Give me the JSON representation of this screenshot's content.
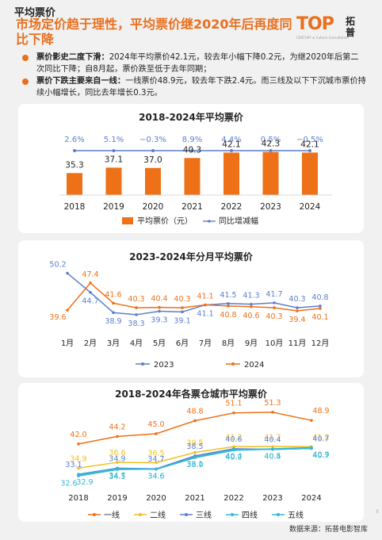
{
  "header": {
    "label": "平均票价",
    "headline": "市场定价趋于理性，平均票价继2020年后再度同比下降"
  },
  "logo": {
    "mark": "TOP",
    "brand": "拓普",
    "tagline": "CENTURY ★ Culture Consultation"
  },
  "bullets": [
    {
      "lead": "票价影史二度下滑：",
      "text": "2024年平均票价42.1元，较去年小幅下降0.2元，为继2020年后第二次同比下降；自8月起，票价跌至低于去年同期；"
    },
    {
      "lead": "票价下跌主要来自一线：",
      "text": "一线票价48.9元，较去年下跌2.4元。而三线及以下下沉城市票价持续小幅增长，同比去年增长0.3元。"
    }
  ],
  "colors": {
    "orange": "#ee7117",
    "blue": "#5b7fcf",
    "yellow": "#f0c022",
    "cyan": "#35b8d2",
    "accent": "#e8701f"
  },
  "footer": {
    "source": "数据来源：拓普电影智库",
    "page": "8"
  },
  "chart_data": [
    {
      "type": "bar",
      "title": "2018-2024年平均票价",
      "categories": [
        "2018",
        "2019",
        "2020",
        "2021",
        "2022",
        "2023",
        "2024"
      ],
      "series": [
        {
          "name": "平均票价（元）",
          "values": [
            35.3,
            37.1,
            37.0,
            40.3,
            42.1,
            42.3,
            42.1
          ],
          "labels": [
            "35.3",
            "37.1",
            "37.0",
            "40.3",
            "42.1",
            "42.3",
            "42.1"
          ]
        },
        {
          "name": "同比增减幅",
          "values": [
            2.6,
            5.1,
            -0.3,
            8.9,
            4.4,
            0.5,
            -0.5
          ],
          "labels": [
            "2.6%",
            "5.1%",
            "−0.3%",
            "8.9%",
            "4.4%",
            "0.5%",
            "−0.5%"
          ]
        }
      ],
      "legend": "bottom"
    },
    {
      "type": "line",
      "title": "2023-2024年分月平均票价",
      "categories": [
        "1月",
        "2月",
        "3月",
        "4月",
        "5月",
        "6月",
        "7月",
        "8月",
        "9月",
        "10月",
        "11月",
        "12月"
      ],
      "series": [
        {
          "name": "2023",
          "values": [
            50.2,
            44.7,
            38.9,
            38.3,
            39.3,
            39.1,
            41.1,
            41.5,
            41.3,
            41.7,
            40.3,
            40.8
          ]
        },
        {
          "name": "2024",
          "values": [
            39.6,
            47.4,
            41.6,
            40.3,
            40.4,
            40.3,
            41.1,
            40.8,
            40.6,
            40.3,
            39.4,
            40.1
          ]
        }
      ],
      "legend": "bottom"
    },
    {
      "type": "line",
      "title": "2018-2024年各票仓城市平均票价",
      "categories": [
        "2018",
        "2019",
        "2020",
        "2021",
        "2022",
        "2023",
        "2024"
      ],
      "series": [
        {
          "name": "一线",
          "values": [
            42.0,
            44.2,
            45.0,
            48.8,
            51.1,
            51.3,
            48.9
          ]
        },
        {
          "name": "二线",
          "values": [
            34.9,
            36.6,
            36.5,
            39.5,
            41.2,
            41.2,
            41.2
          ]
        },
        {
          "name": "三线",
          "values": [
            33.1,
            34.9,
            34.7,
            38.5,
            40.6,
            40.4,
            40.7
          ]
        },
        {
          "name": "四线",
          "values": [
            32.6,
            34.5,
            34.6,
            38.1,
            40.4,
            40.4,
            40.7
          ]
        },
        {
          "name": "五线",
          "values": [
            32.9,
            34.7,
            34.6,
            38.0,
            40.2,
            40.5,
            40.9
          ]
        }
      ],
      "legend": "bottom"
    }
  ]
}
